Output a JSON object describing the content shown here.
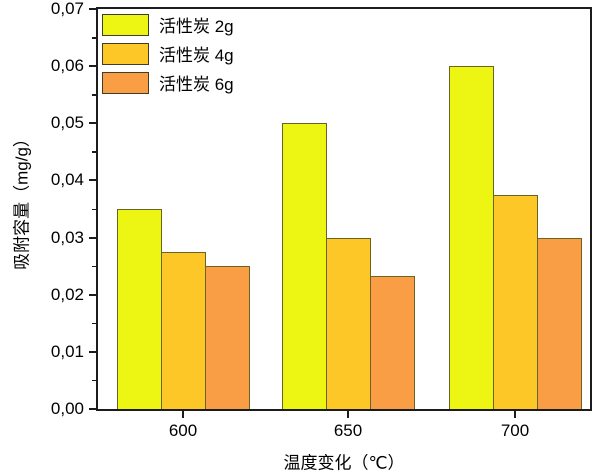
{
  "chart_data": {
    "type": "bar",
    "title": "",
    "xlabel": "温度变化（℃）",
    "ylabel": "吸附容量（mg/g）",
    "categories": [
      "600",
      "650",
      "700"
    ],
    "series": [
      {
        "name": "活性炭 2g",
        "color": "#EDF512",
        "values": [
          0.035,
          0.05,
          0.06
        ]
      },
      {
        "name": "活性炭 4g",
        "color": "#FDC728",
        "values": [
          0.0275,
          0.03,
          0.0375
        ]
      },
      {
        "name": "活性炭 6g",
        "color": "#FA9E45",
        "values": [
          0.025,
          0.0233,
          0.03
        ]
      }
    ],
    "ylim": [
      0,
      0.07
    ],
    "y_major_step": 0.01,
    "y_minor_step": 0.005,
    "y_tick_labels": [
      "0,00",
      "0,01",
      "0,02",
      "0,03",
      "0,04",
      "0,05",
      "0,06",
      "0,07"
    ],
    "decimal_separator": ",",
    "legend_position": "top-left-inside",
    "grid": false,
    "bar_border_color": "#6b6326",
    "axis_color": "#1c1c1c",
    "plot_background": "#ffffff"
  }
}
